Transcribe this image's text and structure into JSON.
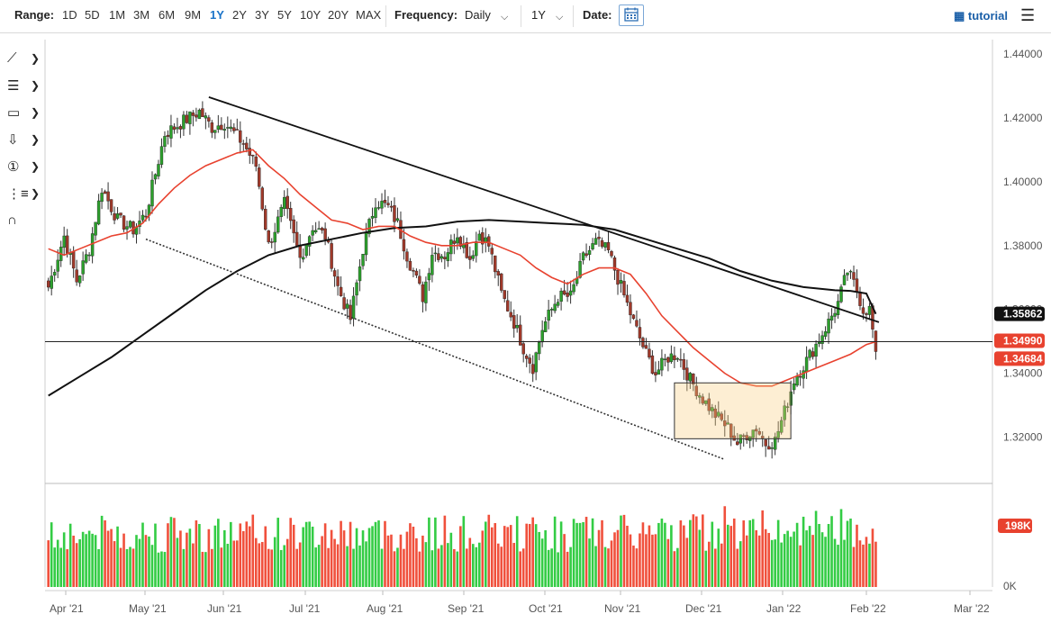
{
  "toolbar": {
    "range_label": "Range:",
    "ranges": [
      "1D",
      "5D",
      "1M",
      "3M",
      "6M",
      "9M",
      "1Y",
      "2Y",
      "3Y",
      "5Y",
      "10Y",
      "20Y",
      "MAX"
    ],
    "active_range": "1Y",
    "frequency_label": "Frequency:",
    "frequency_value": "Daily",
    "period_value": "1Y",
    "date_label": "Date:",
    "tutorial_label": "tutorial",
    "icons": [
      "calendar-icon",
      "film-icon",
      "hamburger-menu-icon",
      "chevron-down-icon"
    ]
  },
  "drawing_tools": [
    {
      "name": "trendline-tool-icon",
      "glyph": "⟋"
    },
    {
      "name": "fibonacci-tool-icon",
      "glyph": "☰"
    },
    {
      "name": "rectangle-tool-icon",
      "glyph": "▭"
    },
    {
      "name": "arrow-tool-icon",
      "glyph": "⇩"
    },
    {
      "name": "text-marker-tool-icon",
      "glyph": "①"
    },
    {
      "name": "pitchfork-tool-icon",
      "glyph": "⋮"
    },
    {
      "name": "magnet-tool-icon",
      "glyph": "∩"
    }
  ],
  "chart_data": {
    "type": "candlestick",
    "y_axis": {
      "ticks": [
        "1.44000",
        "1.42000",
        "1.40000",
        "1.38000",
        "1.36000",
        "1.34000",
        "1.32000"
      ],
      "range": [
        1.3055,
        1.4445
      ]
    },
    "x_axis": {
      "ticks": [
        "Apr '21",
        "May '21",
        "Jun '21",
        "Jul '21",
        "Aug '21",
        "Sep '21",
        "Oct '21",
        "Nov '21",
        "Dec '21",
        "Jan '22",
        "Feb '22",
        "Mar '22"
      ]
    },
    "price_labels": [
      {
        "text": "1.35862",
        "value": 1.35862,
        "color": "#111111"
      },
      {
        "text": "1.34990",
        "value": 1.3499,
        "color": "#e8422f"
      },
      {
        "text": "1.34684",
        "value": 1.34684,
        "color": "#e8422f"
      }
    ],
    "volume_label": {
      "text": "198K",
      "color": "#e8422f"
    },
    "volume_axis": {
      "zero_label": "0K"
    },
    "colors": {
      "up": "#2ca02c",
      "down": "#a0392a",
      "ma_fast": "#e8422f",
      "ma_slow": "#111111",
      "volume_up": "#33cc44",
      "volume_down": "#f0503c"
    },
    "price_path": [
      [
        0,
        1.367
      ],
      [
        5,
        1.383
      ],
      [
        9,
        1.369
      ],
      [
        13,
        1.379
      ],
      [
        17,
        1.398
      ],
      [
        22,
        1.388
      ],
      [
        27,
        1.385
      ],
      [
        31,
        1.39
      ],
      [
        37,
        1.415
      ],
      [
        43,
        1.419
      ],
      [
        48,
        1.422
      ],
      [
        52,
        1.417
      ],
      [
        56,
        1.4185
      ],
      [
        62,
        1.412
      ],
      [
        66,
        1.405
      ],
      [
        70,
        1.38
      ],
      [
        75,
        1.393
      ],
      [
        80,
        1.376
      ],
      [
        84,
        1.386
      ],
      [
        88,
        1.383
      ],
      [
        92,
        1.367
      ],
      [
        96,
        1.357
      ],
      [
        100,
        1.379
      ],
      [
        104,
        1.394
      ],
      [
        108,
        1.392
      ],
      [
        111,
        1.387
      ],
      [
        114,
        1.377
      ],
      [
        119,
        1.364
      ],
      [
        122,
        1.378
      ],
      [
        126,
        1.377
      ],
      [
        130,
        1.384
      ],
      [
        134,
        1.376
      ],
      [
        137,
        1.384
      ],
      [
        140,
        1.38
      ],
      [
        144,
        1.365
      ],
      [
        148,
        1.356
      ],
      [
        151,
        1.348
      ],
      [
        154,
        1.342
      ],
      [
        157,
        1.354
      ],
      [
        162,
        1.364
      ],
      [
        166,
        1.364
      ],
      [
        170,
        1.376
      ],
      [
        174,
        1.381
      ],
      [
        178,
        1.378
      ],
      [
        182,
        1.367
      ],
      [
        186,
        1.356
      ],
      [
        190,
        1.346
      ],
      [
        193,
        1.34
      ],
      [
        197,
        1.345
      ],
      [
        200,
        1.346
      ],
      [
        204,
        1.338
      ],
      [
        208,
        1.332
      ],
      [
        212,
        1.327
      ],
      [
        216,
        1.323
      ],
      [
        219,
        1.318
      ],
      [
        222,
        1.321
      ],
      [
        225,
        1.323
      ],
      [
        228,
        1.318
      ],
      [
        231,
        1.319
      ],
      [
        234,
        1.328
      ],
      [
        237,
        1.338
      ],
      [
        241,
        1.344
      ],
      [
        244,
        1.349
      ],
      [
        248,
        1.356
      ],
      [
        251,
        1.362
      ],
      [
        254,
        1.372
      ],
      [
        257,
        1.366
      ],
      [
        259,
        1.36
      ],
      [
        261,
        1.36
      ],
      [
        263,
        1.3468
      ]
    ],
    "ma_fast": [
      [
        0,
        1.379
      ],
      [
        5,
        1.377
      ],
      [
        10,
        1.379
      ],
      [
        15,
        1.381
      ],
      [
        20,
        1.383
      ],
      [
        25,
        1.384
      ],
      [
        30,
        1.387
      ],
      [
        35,
        1.393
      ],
      [
        40,
        1.398
      ],
      [
        45,
        1.402
      ],
      [
        50,
        1.405
      ],
      [
        55,
        1.407
      ],
      [
        60,
        1.409
      ],
      [
        65,
        1.41
      ],
      [
        70,
        1.405
      ],
      [
        75,
        1.401
      ],
      [
        80,
        1.396
      ],
      [
        85,
        1.392
      ],
      [
        90,
        1.388
      ],
      [
        95,
        1.387
      ],
      [
        100,
        1.385
      ],
      [
        105,
        1.386
      ],
      [
        110,
        1.386
      ],
      [
        115,
        1.383
      ],
      [
        120,
        1.381
      ],
      [
        125,
        1.38
      ],
      [
        130,
        1.38
      ],
      [
        135,
        1.381
      ],
      [
        140,
        1.381
      ],
      [
        145,
        1.379
      ],
      [
        150,
        1.377
      ],
      [
        155,
        1.373
      ],
      [
        160,
        1.37
      ],
      [
        165,
        1.368
      ],
      [
        170,
        1.371
      ],
      [
        175,
        1.373
      ],
      [
        180,
        1.373
      ],
      [
        185,
        1.371
      ],
      [
        190,
        1.365
      ],
      [
        195,
        1.358
      ],
      [
        200,
        1.353
      ],
      [
        205,
        1.348
      ],
      [
        210,
        1.344
      ],
      [
        215,
        1.34
      ],
      [
        220,
        1.337
      ],
      [
        225,
        1.336
      ],
      [
        230,
        1.336
      ],
      [
        235,
        1.338
      ],
      [
        240,
        1.34
      ],
      [
        245,
        1.342
      ],
      [
        250,
        1.344
      ],
      [
        255,
        1.346
      ],
      [
        260,
        1.349
      ],
      [
        263,
        1.3499
      ]
    ],
    "ma_slow": [
      [
        0,
        1.333
      ],
      [
        10,
        1.339
      ],
      [
        20,
        1.345
      ],
      [
        30,
        1.352
      ],
      [
        40,
        1.359
      ],
      [
        50,
        1.366
      ],
      [
        60,
        1.372
      ],
      [
        70,
        1.377
      ],
      [
        80,
        1.38
      ],
      [
        90,
        1.382
      ],
      [
        100,
        1.384
      ],
      [
        110,
        1.3855
      ],
      [
        120,
        1.386
      ],
      [
        130,
        1.3875
      ],
      [
        140,
        1.388
      ],
      [
        150,
        1.3875
      ],
      [
        160,
        1.387
      ],
      [
        170,
        1.3865
      ],
      [
        180,
        1.385
      ],
      [
        190,
        1.382
      ],
      [
        200,
        1.379
      ],
      [
        210,
        1.376
      ],
      [
        220,
        1.372
      ],
      [
        230,
        1.369
      ],
      [
        240,
        1.367
      ],
      [
        250,
        1.366
      ],
      [
        255,
        1.3658
      ],
      [
        260,
        1.365
      ],
      [
        263,
        1.3586
      ]
    ],
    "trendline_upper": [
      [
        51,
        1.4265
      ],
      [
        264,
        1.356
      ]
    ],
    "trendline_lower_dotted": [
      [
        31,
        1.382
      ],
      [
        215,
        1.313
      ]
    ],
    "horizontal_line": 1.3499,
    "box": {
      "x": [
        199,
        236
      ],
      "y": [
        1.3195,
        1.337
      ]
    }
  }
}
